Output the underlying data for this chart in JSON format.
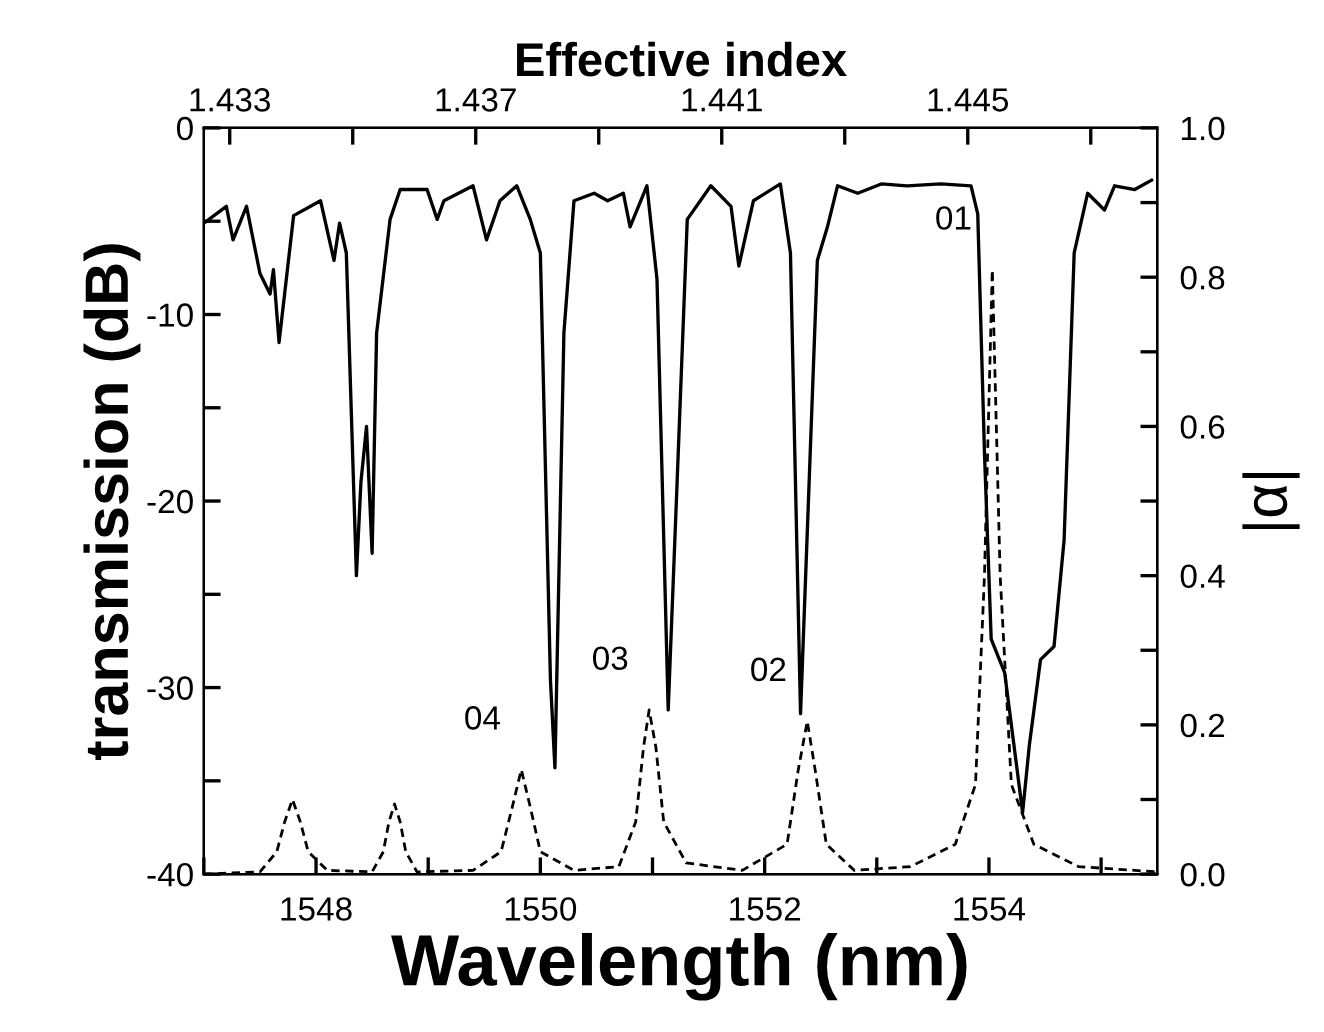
{
  "chart_data": {
    "type": "line",
    "xlabel": "Wavelength (nm)",
    "ylabel": "transmission (dB)",
    "y2label": "|α|",
    "x2label": "Effective index",
    "xlim": [
      1547.0,
      1555.5
    ],
    "xticks": [
      {
        "value": 1547,
        "label": null
      },
      1548,
      {
        "value": 1549,
        "label": null
      },
      1550,
      {
        "value": 1551,
        "label": null
      },
      1552,
      {
        "value": 1553,
        "label": null
      },
      1554,
      {
        "value": 1555,
        "label": null
      }
    ],
    "x2lim": [
      1.43258,
      1.44808
    ],
    "x2ticks": [
      1.433,
      {
        "value": 1.435,
        "label": null
      },
      1.437,
      {
        "value": 1.439,
        "label": null
      },
      1.441,
      {
        "value": 1.443,
        "label": null
      },
      1.445,
      {
        "value": 1.447,
        "label": null
      }
    ],
    "ylim": [
      -40,
      0
    ],
    "yticks": [
      -40,
      {
        "value": -35,
        "label": null
      },
      -30,
      {
        "value": -25,
        "label": null
      },
      -20,
      {
        "value": -15,
        "label": null
      },
      -10,
      {
        "value": -5,
        "label": null
      },
      0
    ],
    "y2lim": [
      0,
      1.0
    ],
    "y2ticks": [
      {
        "value": 0,
        "label": "0.0"
      },
      {
        "value": 0.1,
        "label": null
      },
      0.2,
      {
        "value": 0.3,
        "label": null
      },
      0.4,
      {
        "value": 0.5,
        "label": null
      },
      0.6,
      {
        "value": 0.7,
        "label": null
      },
      0.8,
      {
        "value": 0.9,
        "label": null
      },
      {
        "value": 1.0,
        "label": "1.0"
      }
    ],
    "grid": false,
    "marker": "none",
    "series": [
      {
        "color": "#000000",
        "line_style": "solid",
        "x": [
          1547.0,
          1547.2,
          1547.26,
          1547.38,
          1547.5,
          1547.59,
          1547.62,
          1547.67,
          1547.8,
          1548.04,
          1548.16,
          1548.21,
          1548.27,
          1548.36,
          1548.4,
          1548.45,
          1548.5,
          1548.54,
          1548.66,
          1548.75,
          1548.99,
          1549.08,
          1549.14,
          1549.4,
          1549.52,
          1549.64,
          1549.79,
          1549.91,
          1550.0,
          1550.09,
          1550.13,
          1550.21,
          1550.3,
          1550.48,
          1550.6,
          1550.74,
          1550.8,
          1550.95,
          1551.04,
          1551.14,
          1551.22,
          1551.31,
          1551.52,
          1551.7,
          1551.77,
          1551.9,
          1552.14,
          1552.23,
          1552.32,
          1552.47,
          1552.56,
          1552.65,
          1552.83,
          1553.04,
          1553.27,
          1553.57,
          1553.84,
          1553.9,
          1553.96,
          1554.02,
          1554.14,
          1554.3,
          1554.36,
          1554.46,
          1554.58,
          1554.67,
          1554.76,
          1554.88,
          1555.03,
          1555.12,
          1555.3,
          1555.45
        ],
        "values": [
          -5.1,
          -4.2,
          -6.0,
          -4.2,
          -7.8,
          -8.9,
          -7.6,
          -11.5,
          -4.7,
          -3.9,
          -7.1,
          -5.1,
          -6.7,
          -24.0,
          -19.0,
          -16.0,
          -22.8,
          -11.0,
          -4.9,
          -3.3,
          -3.3,
          -4.9,
          -3.9,
          -3.1,
          -6.0,
          -3.9,
          -3.1,
          -4.9,
          -6.7,
          -29.6,
          -34.3,
          -11.0,
          -3.9,
          -3.5,
          -3.9,
          -3.5,
          -5.3,
          -3.1,
          -8.1,
          -31.2,
          -18.9,
          -4.9,
          -3.1,
          -4.2,
          -7.4,
          -3.9,
          -3.0,
          -6.7,
          -31.4,
          -7.1,
          -5.3,
          -3.1,
          -3.5,
          -3.0,
          -3.1,
          -3.0,
          -3.1,
          -4.6,
          -17.4,
          -27.4,
          -29.2,
          -36.7,
          -33.1,
          -28.5,
          -27.8,
          -22.1,
          -6.7,
          -3.5,
          -4.4,
          -3.1,
          -3.3,
          -2.8
        ]
      },
      {
        "color": "#000000",
        "line_style": "dashed",
        "axis": "y2",
        "x": [
          1547.0,
          1547.5,
          1547.65,
          1547.72,
          1547.79,
          1547.86,
          1547.93,
          1548.1,
          1548.5,
          1548.6,
          1548.65,
          1548.7,
          1548.75,
          1548.8,
          1548.9,
          1549.4,
          1549.65,
          1549.75,
          1549.83,
          1549.91,
          1550.0,
          1550.3,
          1550.7,
          1550.85,
          1550.92,
          1550.97,
          1551.03,
          1551.1,
          1551.3,
          1551.8,
          1552.2,
          1552.3,
          1552.38,
          1552.45,
          1552.55,
          1552.8,
          1553.3,
          1553.7,
          1553.88,
          1553.96,
          1554.03,
          1554.1,
          1554.2,
          1554.4,
          1554.8,
          1555.5
        ],
        "values": [
          0.0,
          0.003,
          0.03,
          0.07,
          0.1,
          0.07,
          0.03,
          0.005,
          0.003,
          0.03,
          0.07,
          0.094,
          0.07,
          0.03,
          0.003,
          0.005,
          0.03,
          0.09,
          0.14,
          0.09,
          0.03,
          0.005,
          0.01,
          0.07,
          0.17,
          0.22,
          0.17,
          0.07,
          0.015,
          0.005,
          0.04,
          0.14,
          0.205,
          0.14,
          0.04,
          0.005,
          0.01,
          0.04,
          0.12,
          0.4,
          0.81,
          0.4,
          0.12,
          0.04,
          0.01,
          0.003
        ]
      }
    ],
    "annotations": [
      "04",
      "03",
      "02",
      "01"
    ]
  }
}
